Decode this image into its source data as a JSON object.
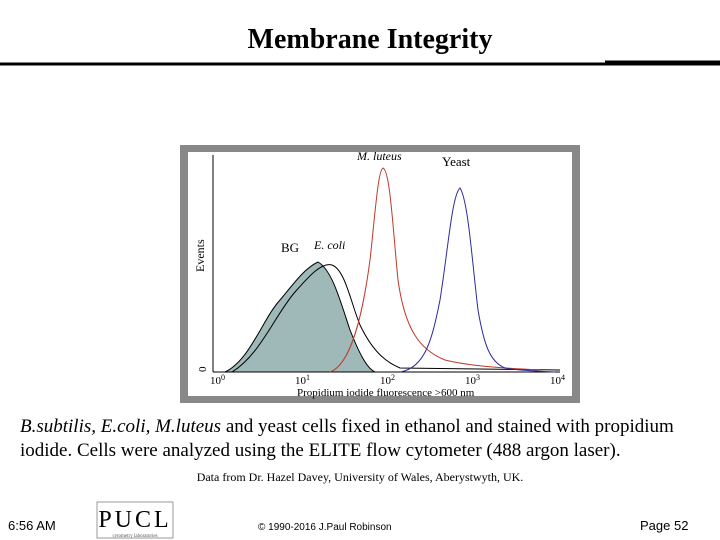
{
  "header": {
    "title": "Membrane Integrity"
  },
  "figure": {
    "labels": {
      "m_luteus": "M. luteus",
      "yeast": "Yeast",
      "bg": "BG",
      "e_coli": "E. coli"
    },
    "y_axis_label": "Events",
    "y_zero": "0",
    "x_axis_label": "Propidium iodide fluorescence >600 nm",
    "x_ticks": [
      {
        "base": "10",
        "exp": "0"
      },
      {
        "base": "10",
        "exp": "1"
      },
      {
        "base": "10",
        "exp": "2"
      },
      {
        "base": "10",
        "exp": "3"
      },
      {
        "base": "10",
        "exp": "4"
      }
    ]
  },
  "caption": {
    "italic": "B.subtilis, E.coli, M.luteus",
    "rest": " and yeast cells fixed in ethanol and stained with propidium iodide.  Cells were analyzed using the ELITE flow cytometer (488 argon laser)."
  },
  "credit": "Data from  Dr. Hazel Davey, University of Wales, Aberystwyth, UK.",
  "footer": {
    "time": "6:56 AM",
    "logo": "PUCL",
    "logo_sub": "cytometry laboratories",
    "copyright": "© 1990-2016 J.Paul Robinson",
    "page": "Page 52"
  }
}
